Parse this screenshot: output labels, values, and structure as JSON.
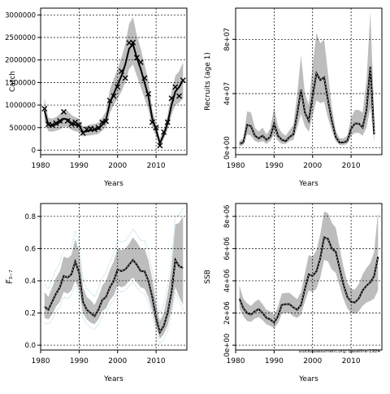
{
  "credit": "stockassessment.org: baseline-1924",
  "chart_data": [
    {
      "type": "line",
      "ylabel": "Catch",
      "xlabel": "Years",
      "xlim": [
        1980,
        2018
      ],
      "ylim": [
        -100000,
        3150000
      ],
      "x_ticks": [
        1980,
        1990,
        2000,
        2010
      ],
      "y_ticks": [
        0,
        500000,
        1000000,
        1500000,
        2000000,
        2500000,
        3000000
      ],
      "y_tick_labels": [
        "0",
        "500000",
        "1000000",
        "1500000",
        "2000000",
        "2500000",
        "3000000"
      ],
      "grid": true,
      "x": [
        1981,
        1982,
        1983,
        1984,
        1985,
        1986,
        1987,
        1988,
        1989,
        1990,
        1991,
        1992,
        1993,
        1994,
        1995,
        1996,
        1997,
        1998,
        1999,
        2000,
        2001,
        2002,
        2003,
        2004,
        2005,
        2006,
        2007,
        2008,
        2009,
        2010,
        2011,
        2012,
        2013,
        2014,
        2015,
        2016,
        2017
      ],
      "estimate": [
        880000,
        560000,
        540000,
        570000,
        620000,
        700000,
        680000,
        600000,
        560000,
        540000,
        400000,
        420000,
        440000,
        450000,
        470000,
        560000,
        680000,
        1050000,
        1250000,
        1450000,
        1650000,
        1900000,
        2250000,
        2350000,
        2050000,
        1800000,
        1500000,
        1200000,
        700000,
        450000,
        150000,
        350000,
        600000,
        1000000,
        1300000,
        1400000,
        1550000
      ],
      "lower": [
        650000,
        420000,
        410000,
        430000,
        460000,
        520000,
        520000,
        450000,
        420000,
        400000,
        300000,
        320000,
        330000,
        340000,
        360000,
        430000,
        520000,
        820000,
        1000000,
        1150000,
        1300000,
        1500000,
        1800000,
        1900000,
        1650000,
        1400000,
        1150000,
        900000,
        500000,
        320000,
        80000,
        250000,
        450000,
        780000,
        1000000,
        1050000,
        1150000
      ],
      "upper": [
        1150000,
        720000,
        700000,
        730000,
        800000,
        900000,
        870000,
        780000,
        730000,
        700000,
        520000,
        540000,
        570000,
        580000,
        610000,
        720000,
        870000,
        1350000,
        1580000,
        1800000,
        2050000,
        2350000,
        2800000,
        2950000,
        2550000,
        2250000,
        1900000,
        1550000,
        900000,
        600000,
        260000,
        480000,
        780000,
        1300000,
        1650000,
        1750000,
        1950000
      ],
      "observed": [
        920000,
        570000,
        560000,
        600000,
        650000,
        850000,
        650000,
        580000,
        620000,
        560000,
        380000,
        460000,
        480000,
        460000,
        500000,
        620000,
        640000,
        1100000,
        1200000,
        1400000,
        1750000,
        1600000,
        2380000,
        2390000,
        2050000,
        1950000,
        1600000,
        1250000,
        620000,
        500000,
        100000,
        400000,
        620000,
        1150000,
        1400000,
        1200000,
        1550000
      ],
      "colors": {
        "band": "#bdbdbd",
        "line": "#000000",
        "observed": "#000000"
      }
    },
    {
      "type": "line",
      "ylabel": "Recruits (age 1)",
      "xlabel": "Years",
      "xlim": [
        1980,
        2018
      ],
      "ylim": [
        -5000000,
        103000000
      ],
      "x_ticks": [
        1980,
        1990,
        2000,
        2010
      ],
      "y_ticks": [
        0,
        40000000,
        80000000
      ],
      "y_tick_labels": [
        "0e+00",
        "4e+07",
        "8e+07"
      ],
      "grid": true,
      "x": [
        1981,
        1982,
        1983,
        1984,
        1985,
        1986,
        1987,
        1988,
        1989,
        1990,
        1991,
        1992,
        1993,
        1994,
        1995,
        1996,
        1997,
        1998,
        1999,
        2000,
        2001,
        2002,
        2003,
        2004,
        2005,
        2006,
        2007,
        2008,
        2009,
        2010,
        2011,
        2012,
        2013,
        2014,
        2015,
        2016
      ],
      "estimate": [
        3000000,
        4000000,
        17000000,
        16000000,
        9000000,
        7000000,
        9000000,
        6000000,
        8000000,
        18000000,
        9000000,
        6000000,
        5000000,
        8000000,
        10000000,
        25000000,
        43000000,
        26000000,
        20000000,
        38000000,
        55000000,
        50000000,
        52000000,
        35000000,
        20000000,
        8000000,
        4000000,
        4000000,
        5000000,
        14000000,
        18000000,
        18000000,
        15000000,
        28000000,
        60000000,
        10000000
      ],
      "lower": [
        1000000,
        2000000,
        10000000,
        9000000,
        5000000,
        4000000,
        5000000,
        3000000,
        5000000,
        10000000,
        5000000,
        3000000,
        3000000,
        5000000,
        6000000,
        15000000,
        25000000,
        16000000,
        12000000,
        24000000,
        35000000,
        33000000,
        34000000,
        22000000,
        13000000,
        5000000,
        2000000,
        2000000,
        3000000,
        9000000,
        11000000,
        11000000,
        9000000,
        15000000,
        30000000,
        4000000
      ],
      "upper": [
        5000000,
        7000000,
        27000000,
        26000000,
        15000000,
        12000000,
        15000000,
        10000000,
        14000000,
        30000000,
        16000000,
        11000000,
        9000000,
        13000000,
        17000000,
        40000000,
        68000000,
        40000000,
        32000000,
        60000000,
        85000000,
        77000000,
        80000000,
        55000000,
        30000000,
        13000000,
        7000000,
        7000000,
        9000000,
        22000000,
        28000000,
        28000000,
        26000000,
        50000000,
        100000000,
        25000000
      ],
      "colors": {
        "band": "#bdbdbd",
        "line": "#000000"
      }
    },
    {
      "type": "line",
      "ylabel": "F̅₃₋₇",
      "xlabel": "Years",
      "xlim": [
        1980,
        2018
      ],
      "ylim": [
        -0.03,
        0.88
      ],
      "x_ticks": [
        1980,
        1990,
        2000,
        2010
      ],
      "y_ticks": [
        0.0,
        0.2,
        0.4,
        0.6,
        0.8
      ],
      "y_tick_labels": [
        "0.0",
        "0.2",
        "0.4",
        "0.6",
        "0.8"
      ],
      "grid": true,
      "x": [
        1981,
        1982,
        1983,
        1984,
        1985,
        1986,
        1987,
        1988,
        1989,
        1990,
        1991,
        1992,
        1993,
        1994,
        1995,
        1996,
        1997,
        1998,
        1999,
        2000,
        2001,
        2002,
        2003,
        2004,
        2005,
        2006,
        2007,
        2008,
        2009,
        2010,
        2011,
        2012,
        2013,
        2014,
        2015,
        2016,
        2017
      ],
      "estimate": [
        0.24,
        0.22,
        0.27,
        0.32,
        0.36,
        0.43,
        0.42,
        0.44,
        0.52,
        0.45,
        0.27,
        0.22,
        0.2,
        0.18,
        0.22,
        0.28,
        0.3,
        0.36,
        0.4,
        0.47,
        0.46,
        0.47,
        0.5,
        0.53,
        0.5,
        0.46,
        0.46,
        0.4,
        0.3,
        0.17,
        0.08,
        0.12,
        0.2,
        0.33,
        0.53,
        0.49,
        0.48
      ],
      "lower": [
        0.17,
        0.16,
        0.19,
        0.24,
        0.27,
        0.33,
        0.32,
        0.34,
        0.4,
        0.34,
        0.2,
        0.16,
        0.14,
        0.13,
        0.16,
        0.21,
        0.23,
        0.28,
        0.31,
        0.37,
        0.36,
        0.37,
        0.4,
        0.42,
        0.39,
        0.36,
        0.35,
        0.3,
        0.21,
        0.11,
        0.04,
        0.07,
        0.12,
        0.22,
        0.36,
        0.3,
        0.25
      ],
      "upper": [
        0.33,
        0.3,
        0.36,
        0.42,
        0.46,
        0.55,
        0.54,
        0.56,
        0.66,
        0.58,
        0.36,
        0.3,
        0.28,
        0.25,
        0.3,
        0.37,
        0.4,
        0.47,
        0.52,
        0.6,
        0.59,
        0.6,
        0.63,
        0.67,
        0.64,
        0.6,
        0.6,
        0.53,
        0.41,
        0.26,
        0.15,
        0.2,
        0.32,
        0.48,
        0.75,
        0.76,
        0.8
      ],
      "colors": {
        "band": "#bdbdbd",
        "line": "#000000",
        "observed": "#add8e6"
      }
    },
    {
      "type": "line",
      "ylabel": "SSB",
      "xlabel": "Years",
      "xlim": [
        1980,
        2018
      ],
      "ylim": [
        -300000,
        8800000
      ],
      "x_ticks": [
        1980,
        1990,
        2000,
        2010
      ],
      "y_ticks": [
        0,
        2000000,
        4000000,
        6000000,
        8000000
      ],
      "y_tick_labels": [
        "0e+00",
        "2e+06",
        "4e+06",
        "6e+06",
        "8e+06"
      ],
      "grid": true,
      "x": [
        1981,
        1982,
        1983,
        1984,
        1985,
        1986,
        1987,
        1988,
        1989,
        1990,
        1991,
        1992,
        1993,
        1994,
        1995,
        1996,
        1997,
        1998,
        1999,
        2000,
        2001,
        2002,
        2003,
        2004,
        2005,
        2006,
        2007,
        2008,
        2009,
        2010,
        2011,
        2012,
        2013,
        2014,
        2015,
        2016,
        2017
      ],
      "estimate": [
        2900000,
        2300000,
        2000000,
        1900000,
        2100000,
        2250000,
        2000000,
        1700000,
        1600000,
        1400000,
        1800000,
        2500000,
        2550000,
        2550000,
        2350000,
        2200000,
        2500000,
        3500000,
        4400000,
        4300000,
        4600000,
        5400000,
        6700000,
        6600000,
        6000000,
        5800000,
        4800000,
        3800000,
        3000000,
        2700000,
        2650000,
        2900000,
        3400000,
        3700000,
        3900000,
        4300000,
        5500000
      ],
      "lower": [
        2300000,
        1800000,
        1500000,
        1450000,
        1650000,
        1750000,
        1550000,
        1300000,
        1200000,
        1050000,
        1350000,
        1950000,
        2000000,
        2000000,
        1800000,
        1700000,
        1900000,
        2700000,
        3400000,
        3300000,
        3500000,
        4200000,
        5300000,
        5200000,
        4700000,
        4500000,
        3700000,
        2900000,
        2300000,
        2000000,
        1950000,
        2100000,
        2450000,
        2650000,
        2750000,
        2900000,
        3400000
      ],
      "upper": [
        3700000,
        2900000,
        2600000,
        2450000,
        2700000,
        2850000,
        2550000,
        2200000,
        2100000,
        1850000,
        2400000,
        3200000,
        3250000,
        3250000,
        3050000,
        2850000,
        3300000,
        4500000,
        5600000,
        5500000,
        5900000,
        6900000,
        8300000,
        8200000,
        7600000,
        7300000,
        6100000,
        4900000,
        3900000,
        3500000,
        3450000,
        3800000,
        4400000,
        4800000,
        5100000,
        5800000,
        8300000
      ],
      "colors": {
        "band": "#bdbdbd",
        "line": "#000000"
      }
    }
  ]
}
